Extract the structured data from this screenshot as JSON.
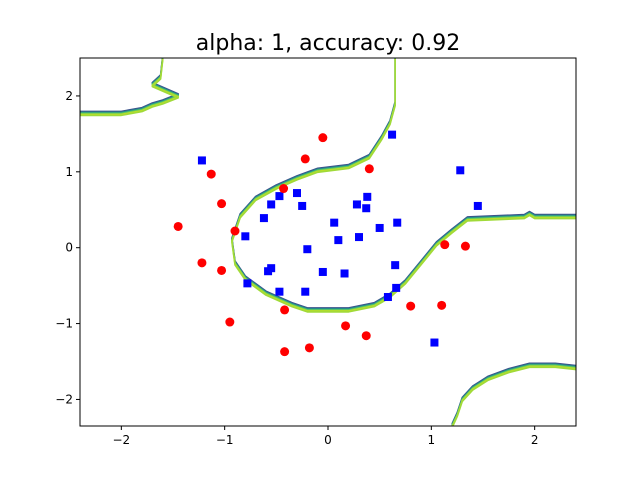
{
  "chart_data": {
    "type": "scatter",
    "title": "alpha: 1, accuracy: 0.92",
    "xlabel": "",
    "ylabel": "",
    "xlim": [
      -2.4,
      2.4
    ],
    "ylim": [
      -2.35,
      2.5
    ],
    "grid": false,
    "legend": "none",
    "x_ticks": [
      -2,
      -1,
      0,
      1,
      2
    ],
    "y_ticks": [
      -2,
      -1,
      0,
      1,
      2
    ],
    "x_tick_labels": [
      "−2",
      "−1",
      "0",
      "1",
      "2"
    ],
    "y_tick_labels": [
      "−2",
      "−1",
      "0",
      "1",
      "2"
    ],
    "series": [
      {
        "marker": "square",
        "color": "#0000ff",
        "points": [
          [
            -1.22,
            1.15
          ],
          [
            0.62,
            1.49
          ],
          [
            1.28,
            1.02
          ],
          [
            1.45,
            0.55
          ],
          [
            -0.3,
            0.72
          ],
          [
            -0.47,
            0.68
          ],
          [
            -0.55,
            0.57
          ],
          [
            -0.25,
            0.55
          ],
          [
            0.38,
            0.67
          ],
          [
            0.37,
            0.52
          ],
          [
            0.28,
            0.57
          ],
          [
            -0.62,
            0.39
          ],
          [
            0.06,
            0.33
          ],
          [
            0.5,
            0.26
          ],
          [
            0.67,
            0.33
          ],
          [
            -0.8,
            0.15
          ],
          [
            0.3,
            0.14
          ],
          [
            0.1,
            0.1
          ],
          [
            -0.2,
            -0.02
          ],
          [
            0.65,
            -0.23
          ],
          [
            -0.55,
            -0.27
          ],
          [
            -0.58,
            -0.31
          ],
          [
            -0.05,
            -0.32
          ],
          [
            0.16,
            -0.34
          ],
          [
            -0.78,
            -0.47
          ],
          [
            -0.47,
            -0.58
          ],
          [
            -0.22,
            -0.58
          ],
          [
            0.66,
            -0.53
          ],
          [
            0.58,
            -0.65
          ],
          [
            1.03,
            -1.25
          ]
        ]
      },
      {
        "marker": "circle",
        "color": "#ff0000",
        "points": [
          [
            -0.05,
            1.45
          ],
          [
            -0.22,
            1.17
          ],
          [
            0.4,
            1.04
          ],
          [
            -1.13,
            0.97
          ],
          [
            -0.43,
            0.78
          ],
          [
            -1.03,
            0.58
          ],
          [
            -1.45,
            0.28
          ],
          [
            -0.9,
            0.22
          ],
          [
            1.13,
            0.04
          ],
          [
            1.33,
            0.02
          ],
          [
            -1.22,
            -0.2
          ],
          [
            -1.03,
            -0.3
          ],
          [
            0.8,
            -0.77
          ],
          [
            1.1,
            -0.76
          ],
          [
            -0.42,
            -0.82
          ],
          [
            -0.95,
            -0.98
          ],
          [
            0.17,
            -1.03
          ],
          [
            0.37,
            -1.16
          ],
          [
            -0.18,
            -1.32
          ],
          [
            -0.42,
            -1.37
          ]
        ]
      }
    ],
    "boundary_colors": [
      "#3b528b",
      "#21918c",
      "#5ec962",
      "#bddf26",
      "#a0da39"
    ],
    "boundaries": [
      [
        [
          -2.4,
          1.77
        ],
        [
          -2.0,
          1.77
        ],
        [
          -1.8,
          1.82
        ],
        [
          -1.7,
          1.88
        ],
        [
          -1.6,
          1.92
        ],
        [
          -1.45,
          2.0
        ],
        [
          -1.7,
          2.15
        ],
        [
          -1.62,
          2.25
        ],
        [
          -1.6,
          2.5
        ]
      ],
      [
        [
          0.65,
          2.5
        ],
        [
          0.65,
          1.9
        ],
        [
          0.6,
          1.65
        ],
        [
          0.52,
          1.45
        ],
        [
          0.4,
          1.2
        ],
        [
          0.2,
          1.07
        ],
        [
          -0.1,
          1.02
        ],
        [
          -0.3,
          0.92
        ],
        [
          -0.5,
          0.8
        ],
        [
          -0.7,
          0.65
        ],
        [
          -0.85,
          0.42
        ],
        [
          -0.93,
          0.1
        ],
        [
          -0.9,
          -0.2
        ],
        [
          -0.8,
          -0.4
        ],
        [
          -0.6,
          -0.6
        ],
        [
          -0.35,
          -0.75
        ],
        [
          -0.2,
          -0.82
        ],
        [
          0.2,
          -0.82
        ],
        [
          0.45,
          -0.75
        ],
        [
          0.6,
          -0.63
        ],
        [
          0.75,
          -0.45
        ],
        [
          0.9,
          -0.2
        ],
        [
          1.05,
          0.05
        ],
        [
          1.2,
          0.22
        ],
        [
          1.35,
          0.38
        ],
        [
          1.9,
          0.41
        ],
        [
          1.95,
          0.45
        ],
        [
          2.0,
          0.41
        ],
        [
          2.4,
          0.41
        ]
      ],
      [
        [
          1.2,
          -2.35
        ],
        [
          1.25,
          -2.2
        ],
        [
          1.3,
          -2.0
        ],
        [
          1.4,
          -1.85
        ],
        [
          1.55,
          -1.72
        ],
        [
          1.75,
          -1.62
        ],
        [
          1.95,
          -1.55
        ],
        [
          2.2,
          -1.55
        ],
        [
          2.4,
          -1.58
        ]
      ]
    ]
  }
}
